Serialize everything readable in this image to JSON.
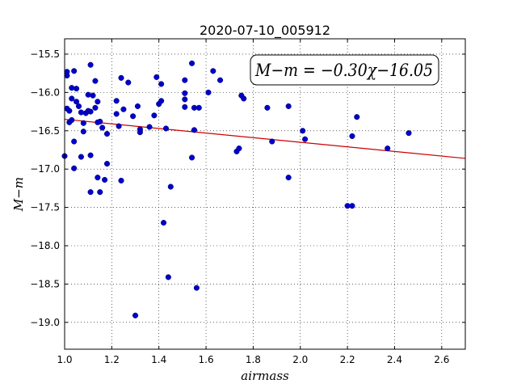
{
  "chart_data": {
    "type": "scatter",
    "title": "2020-07-10_005912",
    "xlabel": "airmass",
    "ylabel": "M−m",
    "xlim": [
      1.0,
      2.7
    ],
    "ylim": [
      -19.35,
      -15.3
    ],
    "y_inverted": true,
    "grid": true,
    "xticks": [
      "1.0",
      "1.2",
      "1.4",
      "1.6",
      "1.8",
      "2.0",
      "2.2",
      "2.4",
      "2.6"
    ],
    "yticks": [
      "−15.5",
      "−16.0",
      "−16.5",
      "−17.0",
      "−17.5",
      "−18.0",
      "−18.5",
      "−19.0"
    ],
    "point_color": "#0000cc",
    "fit_color": "#cc0000",
    "annotation": "M−m = −0.30χ−16.05",
    "fit": {
      "slope": -0.3,
      "intercept": -16.05
    },
    "points": [
      {
        "x": 1.0,
        "y": -16.83
      },
      {
        "x": 1.01,
        "y": -15.73
      },
      {
        "x": 1.01,
        "y": -15.78
      },
      {
        "x": 1.01,
        "y": -16.21
      },
      {
        "x": 1.02,
        "y": -16.24
      },
      {
        "x": 1.02,
        "y": -16.39
      },
      {
        "x": 1.03,
        "y": -15.94
      },
      {
        "x": 1.03,
        "y": -16.08
      },
      {
        "x": 1.03,
        "y": -16.36
      },
      {
        "x": 1.04,
        "y": -16.99
      },
      {
        "x": 1.04,
        "y": -15.72
      },
      {
        "x": 1.04,
        "y": -16.64
      },
      {
        "x": 1.05,
        "y": -15.95
      },
      {
        "x": 1.05,
        "y": -16.12
      },
      {
        "x": 1.06,
        "y": -16.18
      },
      {
        "x": 1.07,
        "y": -16.26
      },
      {
        "x": 1.07,
        "y": -16.84
      },
      {
        "x": 1.08,
        "y": -16.4
      },
      {
        "x": 1.08,
        "y": -16.51
      },
      {
        "x": 1.09,
        "y": -16.27
      },
      {
        "x": 1.1,
        "y": -16.03
      },
      {
        "x": 1.1,
        "y": -16.24
      },
      {
        "x": 1.11,
        "y": -15.64
      },
      {
        "x": 1.11,
        "y": -16.25
      },
      {
        "x": 1.11,
        "y": -16.82
      },
      {
        "x": 1.11,
        "y": -17.3
      },
      {
        "x": 1.12,
        "y": -16.04
      },
      {
        "x": 1.13,
        "y": -15.85
      },
      {
        "x": 1.13,
        "y": -16.2
      },
      {
        "x": 1.14,
        "y": -16.12
      },
      {
        "x": 1.14,
        "y": -16.39
      },
      {
        "x": 1.14,
        "y": -17.11
      },
      {
        "x": 1.15,
        "y": -16.38
      },
      {
        "x": 1.15,
        "y": -17.3
      },
      {
        "x": 1.16,
        "y": -16.46
      },
      {
        "x": 1.17,
        "y": -17.14
      },
      {
        "x": 1.18,
        "y": -16.54
      },
      {
        "x": 1.18,
        "y": -16.93
      },
      {
        "x": 1.22,
        "y": -16.11
      },
      {
        "x": 1.22,
        "y": -16.28
      },
      {
        "x": 1.23,
        "y": -16.44
      },
      {
        "x": 1.24,
        "y": -15.81
      },
      {
        "x": 1.24,
        "y": -17.15
      },
      {
        "x": 1.25,
        "y": -16.22
      },
      {
        "x": 1.27,
        "y": -15.87
      },
      {
        "x": 1.29,
        "y": -16.31
      },
      {
        "x": 1.3,
        "y": -18.91
      },
      {
        "x": 1.31,
        "y": -16.18
      },
      {
        "x": 1.32,
        "y": -16.48
      },
      {
        "x": 1.32,
        "y": -16.52
      },
      {
        "x": 1.36,
        "y": -16.45
      },
      {
        "x": 1.38,
        "y": -16.3
      },
      {
        "x": 1.39,
        "y": -15.8
      },
      {
        "x": 1.4,
        "y": -16.15
      },
      {
        "x": 1.41,
        "y": -15.89
      },
      {
        "x": 1.41,
        "y": -16.11
      },
      {
        "x": 1.42,
        "y": -17.7
      },
      {
        "x": 1.43,
        "y": -16.47
      },
      {
        "x": 1.44,
        "y": -18.41
      },
      {
        "x": 1.45,
        "y": -17.23
      },
      {
        "x": 1.51,
        "y": -15.84
      },
      {
        "x": 1.51,
        "y": -16.01
      },
      {
        "x": 1.51,
        "y": -16.09
      },
      {
        "x": 1.51,
        "y": -16.19
      },
      {
        "x": 1.54,
        "y": -15.62
      },
      {
        "x": 1.54,
        "y": -16.85
      },
      {
        "x": 1.55,
        "y": -16.49
      },
      {
        "x": 1.55,
        "y": -16.2
      },
      {
        "x": 1.56,
        "y": -18.55
      },
      {
        "x": 1.57,
        "y": -16.2
      },
      {
        "x": 1.61,
        "y": -16.0
      },
      {
        "x": 1.63,
        "y": -15.72
      },
      {
        "x": 1.66,
        "y": -15.84
      },
      {
        "x": 1.73,
        "y": -16.77
      },
      {
        "x": 1.74,
        "y": -16.73
      },
      {
        "x": 1.75,
        "y": -16.04
      },
      {
        "x": 1.76,
        "y": -16.08
      },
      {
        "x": 1.86,
        "y": -16.2
      },
      {
        "x": 1.88,
        "y": -16.64
      },
      {
        "x": 1.95,
        "y": -16.18
      },
      {
        "x": 1.95,
        "y": -17.11
      },
      {
        "x": 2.01,
        "y": -16.5
      },
      {
        "x": 2.02,
        "y": -16.61
      },
      {
        "x": 2.2,
        "y": -17.48
      },
      {
        "x": 2.22,
        "y": -16.57
      },
      {
        "x": 2.22,
        "y": -17.48
      },
      {
        "x": 2.24,
        "y": -16.32
      },
      {
        "x": 2.37,
        "y": -16.73
      },
      {
        "x": 2.46,
        "y": -16.53
      }
    ]
  }
}
